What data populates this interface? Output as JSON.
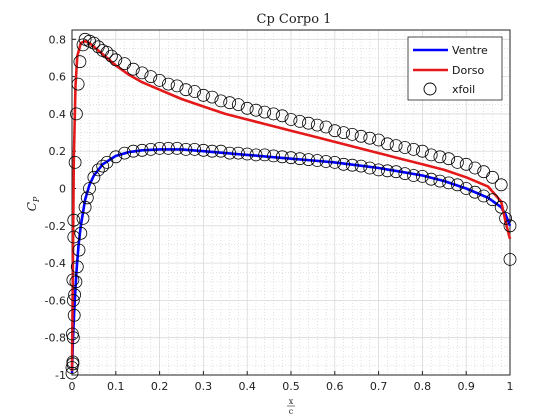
{
  "chart_data": {
    "type": "line",
    "title": "Cp Corpo 1",
    "xlabel": "x/c",
    "ylabel": "C_P",
    "xlim": [
      0,
      1
    ],
    "ylim": [
      -1,
      0.85
    ],
    "grid": "major and minor",
    "legend_position": "top-right",
    "x_ticks": [
      "0",
      "0.1",
      "0.2",
      "0.3",
      "0.4",
      "0.5",
      "0.6",
      "0.7",
      "0.8",
      "0.9",
      "1"
    ],
    "y_ticks": [
      "-1",
      "-0.8",
      "-0.6",
      "-0.4",
      "-0.2",
      "0",
      "0.2",
      "0.4",
      "0.6",
      "0.8"
    ],
    "colors": {
      "ventre": "#0000ff",
      "dorso": "#e41a1a",
      "xfoil": "#000000"
    },
    "series": [
      {
        "name": "Ventre",
        "x": [
          0,
          0.002,
          0.005,
          0.01,
          0.015,
          0.02,
          0.03,
          0.04,
          0.05,
          0.07,
          0.1,
          0.13,
          0.16,
          0.2,
          0.25,
          0.3,
          0.35,
          0.4,
          0.45,
          0.5,
          0.55,
          0.6,
          0.65,
          0.7,
          0.75,
          0.8,
          0.85,
          0.9,
          0.95,
          0.98,
          0.99,
          1.0
        ],
        "y": [
          -0.99,
          -0.82,
          -0.66,
          -0.45,
          -0.3,
          -0.2,
          -0.06,
          0.02,
          0.07,
          0.13,
          0.175,
          0.195,
          0.205,
          0.21,
          0.21,
          0.2,
          0.19,
          0.18,
          0.17,
          0.16,
          0.15,
          0.14,
          0.125,
          0.11,
          0.09,
          0.07,
          0.04,
          0.0,
          -0.05,
          -0.1,
          -0.14,
          -0.2
        ]
      },
      {
        "name": "Dorso",
        "x": [
          0,
          0.002,
          0.004,
          0.008,
          0.012,
          0.02,
          0.03,
          0.04,
          0.05,
          0.07,
          0.1,
          0.13,
          0.16,
          0.2,
          0.25,
          0.3,
          0.35,
          0.4,
          0.45,
          0.5,
          0.55,
          0.6,
          0.65,
          0.7,
          0.75,
          0.8,
          0.85,
          0.9,
          0.95,
          0.98,
          0.99,
          1.0
        ],
        "y": [
          -0.98,
          -0.4,
          0.15,
          0.55,
          0.71,
          0.78,
          0.79,
          0.78,
          0.76,
          0.72,
          0.66,
          0.61,
          0.57,
          0.53,
          0.48,
          0.44,
          0.4,
          0.37,
          0.34,
          0.31,
          0.28,
          0.25,
          0.22,
          0.19,
          0.16,
          0.13,
          0.1,
          0.06,
          0.01,
          -0.07,
          -0.18,
          -0.27
        ]
      },
      {
        "name": "xfoil",
        "marker": "circle",
        "x": [
          0,
          0.002,
          0.003,
          0.005,
          0.006,
          0.009,
          0.012,
          0.016,
          0.02,
          0.025,
          0.03,
          0.035,
          0.04,
          0.05,
          0.06,
          0.07,
          0.08,
          0.1,
          0.12,
          0.14,
          0.16,
          0.18,
          0.2,
          0.22,
          0.24,
          0.26,
          0.28,
          0.3,
          0.32,
          0.34,
          0.36,
          0.38,
          0.4,
          0.42,
          0.44,
          0.46,
          0.48,
          0.5,
          0.52,
          0.54,
          0.56,
          0.58,
          0.6,
          0.62,
          0.64,
          0.66,
          0.68,
          0.7,
          0.72,
          0.74,
          0.76,
          0.78,
          0.8,
          0.82,
          0.84,
          0.86,
          0.88,
          0.9,
          0.92,
          0.94,
          0.96,
          0.98,
          1.0,
          0.0,
          0.001,
          0.002,
          0.004,
          0.007,
          0.01,
          0.014,
          0.018,
          0.025,
          0.03,
          0.04,
          0.05,
          0.06,
          0.07,
          0.08,
          0.09,
          0.1,
          0.12,
          0.14,
          0.16,
          0.18,
          0.2,
          0.22,
          0.24,
          0.26,
          0.28,
          0.3,
          0.32,
          0.34,
          0.36,
          0.38,
          0.4,
          0.42,
          0.44,
          0.46,
          0.48,
          0.5,
          0.52,
          0.54,
          0.56,
          0.58,
          0.6,
          0.62,
          0.64,
          0.66,
          0.68,
          0.7,
          0.72,
          0.74,
          0.76,
          0.78,
          0.8,
          0.82,
          0.84,
          0.86,
          0.88,
          0.9,
          0.92,
          0.94,
          0.96,
          0.98,
          0.99,
          1.0,
          0.002,
          0.003,
          0.004
        ],
        "y": [
          -0.96,
          -0.94,
          -0.8,
          -0.68,
          -0.57,
          -0.5,
          -0.42,
          -0.33,
          -0.24,
          -0.16,
          -0.1,
          -0.05,
          0.0,
          0.06,
          0.1,
          0.12,
          0.14,
          0.17,
          0.19,
          0.2,
          0.205,
          0.21,
          0.215,
          0.215,
          0.215,
          0.21,
          0.21,
          0.205,
          0.2,
          0.2,
          0.19,
          0.19,
          0.185,
          0.18,
          0.18,
          0.175,
          0.17,
          0.165,
          0.16,
          0.155,
          0.15,
          0.145,
          0.14,
          0.13,
          0.125,
          0.12,
          0.11,
          0.1,
          0.095,
          0.09,
          0.08,
          0.07,
          0.065,
          0.05,
          0.04,
          0.03,
          0.02,
          0.0,
          -0.02,
          -0.04,
          -0.06,
          -0.1,
          -0.38,
          -0.99,
          -0.78,
          -0.49,
          -0.17,
          0.14,
          0.4,
          0.56,
          0.68,
          0.77,
          0.8,
          0.79,
          0.78,
          0.76,
          0.74,
          0.73,
          0.71,
          0.69,
          0.67,
          0.64,
          0.62,
          0.6,
          0.58,
          0.56,
          0.55,
          0.53,
          0.52,
          0.5,
          0.49,
          0.47,
          0.46,
          0.45,
          0.43,
          0.42,
          0.41,
          0.4,
          0.39,
          0.37,
          0.36,
          0.35,
          0.34,
          0.33,
          0.31,
          0.3,
          0.29,
          0.28,
          0.27,
          0.26,
          0.24,
          0.23,
          0.22,
          0.21,
          0.2,
          0.18,
          0.17,
          0.16,
          0.14,
          0.13,
          0.11,
          0.09,
          0.06,
          0.02,
          -0.16,
          -0.2,
          -0.93,
          -0.6,
          -0.26
        ]
      }
    ]
  }
}
